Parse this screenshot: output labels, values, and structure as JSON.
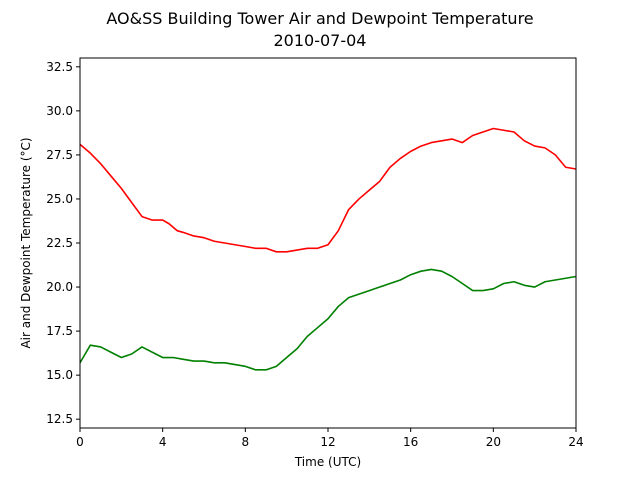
{
  "chart_data": {
    "type": "line",
    "title": "AO&SS Building Tower Air and Dewpoint Temperature",
    "subtitle": "2010-07-04",
    "xlabel": "Time (UTC)",
    "ylabel": "Air and Dewpoint Temperature (°C)",
    "xlim": [
      0,
      24
    ],
    "ylim": [
      12.0,
      33.0
    ],
    "xticks": [
      0,
      4,
      8,
      12,
      16,
      20,
      24
    ],
    "xtick_labels": [
      "0",
      "4",
      "8",
      "12",
      "16",
      "20",
      "24"
    ],
    "yticks": [
      12.5,
      15.0,
      17.5,
      20.0,
      22.5,
      25.0,
      27.5,
      30.0,
      32.5
    ],
    "ytick_labels": [
      "12.5",
      "15.0",
      "17.5",
      "20.0",
      "22.5",
      "25.0",
      "27.5",
      "30.0",
      "32.5"
    ],
    "grid": false,
    "series": [
      {
        "color": "#ff0000",
        "x": [
          0,
          0.5,
          1,
          1.5,
          2,
          2.5,
          3,
          3.5,
          4,
          4.3,
          4.7,
          5,
          5.5,
          6,
          6.5,
          7,
          7.5,
          8,
          8.5,
          9,
          9.5,
          10,
          10.5,
          11,
          11.5,
          12,
          12.5,
          13,
          13.5,
          14,
          14.5,
          15,
          15.5,
          16,
          16.5,
          17,
          17.5,
          18,
          18.5,
          19,
          19.5,
          20,
          20.5,
          21,
          21.5,
          22,
          22.5,
          23,
          23.5,
          24
        ],
        "y": [
          28.1,
          27.6,
          27.0,
          26.3,
          25.6,
          24.8,
          24.0,
          23.8,
          23.8,
          23.6,
          23.2,
          23.1,
          22.9,
          22.8,
          22.6,
          22.5,
          22.4,
          22.3,
          22.2,
          22.2,
          22.0,
          22.0,
          22.1,
          22.2,
          22.2,
          22.4,
          23.2,
          24.4,
          25.0,
          25.5,
          26.0,
          26.8,
          27.3,
          27.7,
          28.0,
          28.2,
          28.3,
          28.4,
          28.2,
          28.6,
          28.8,
          29.0,
          28.9,
          28.8,
          28.3,
          28.0,
          27.9,
          27.5,
          26.8,
          26.7
        ]
      },
      {
        "color": "#008000",
        "x": [
          0,
          0.2,
          0.5,
          1,
          1.5,
          2,
          2.5,
          3,
          3.5,
          4,
          4.5,
          5,
          5.5,
          6,
          6.5,
          7,
          7.5,
          8,
          8.5,
          9,
          9.5,
          10,
          10.5,
          11,
          11.5,
          12,
          12.5,
          13,
          13.5,
          14,
          14.5,
          15,
          15.5,
          16,
          16.5,
          17,
          17.5,
          18,
          18.5,
          19,
          19.5,
          20,
          20.5,
          21,
          21.5,
          22,
          22.5,
          23,
          23.5,
          24
        ],
        "y": [
          15.7,
          16.1,
          16.7,
          16.6,
          16.3,
          16.0,
          16.2,
          16.6,
          16.3,
          16.0,
          16.0,
          15.9,
          15.8,
          15.8,
          15.7,
          15.7,
          15.6,
          15.5,
          15.3,
          15.3,
          15.5,
          16.0,
          16.5,
          17.2,
          17.7,
          18.2,
          18.9,
          19.4,
          19.6,
          19.8,
          20.0,
          20.2,
          20.4,
          20.7,
          20.9,
          21.0,
          20.9,
          20.6,
          20.2,
          19.8,
          19.8,
          19.9,
          20.2,
          20.3,
          20.1,
          20.0,
          20.3,
          20.4,
          20.5,
          20.6
        ]
      }
    ]
  }
}
